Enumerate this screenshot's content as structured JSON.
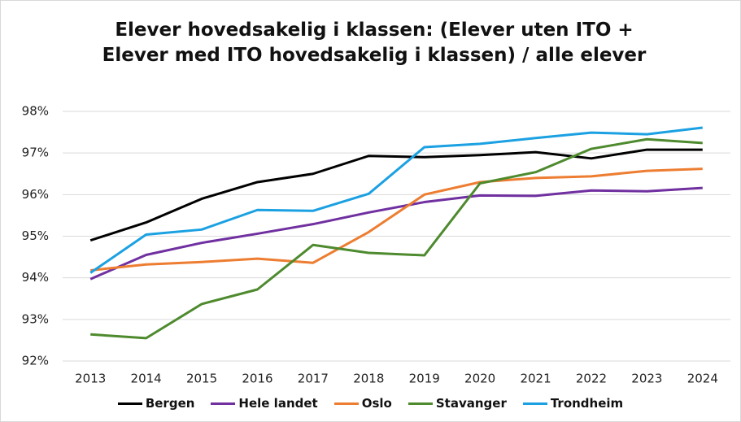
{
  "chart_data": {
    "type": "line",
    "title": "Elever hovedsakelig i klassen: (Elever uten ITO + Elever med ITO hovedsakelig i klassen) / alle elever",
    "categories": [
      "2013",
      "2014",
      "2015",
      "2016",
      "2017",
      "2018",
      "2019",
      "2020",
      "2021",
      "2022",
      "2023",
      "2024"
    ],
    "series": [
      {
        "name": "Bergen",
        "color": "#000000",
        "values": [
          94.9,
          95.33,
          95.9,
          96.3,
          96.5,
          96.93,
          96.9,
          96.95,
          97.02,
          96.87,
          97.08,
          97.08
        ]
      },
      {
        "name": "Hele landet",
        "color": "#7030a0",
        "values": [
          93.97,
          94.55,
          94.84,
          95.06,
          95.29,
          95.57,
          95.82,
          95.98,
          95.97,
          96.1,
          96.08,
          96.16
        ]
      },
      {
        "name": "Oslo",
        "color": "#ed7d31",
        "values": [
          94.18,
          94.32,
          94.38,
          94.46,
          94.36,
          95.1,
          96.0,
          96.3,
          96.4,
          96.44,
          96.57,
          96.62
        ]
      },
      {
        "name": "Stavanger",
        "color": "#4e8a2e",
        "values": [
          92.64,
          92.55,
          93.37,
          93.72,
          94.79,
          94.6,
          94.54,
          96.27,
          96.54,
          97.1,
          97.33,
          97.24
        ]
      },
      {
        "name": "Trondheim",
        "color": "#1ba1e2",
        "values": [
          94.12,
          95.04,
          95.16,
          95.63,
          95.61,
          96.02,
          97.14,
          97.22,
          97.36,
          97.49,
          97.45,
          97.61
        ]
      }
    ],
    "ylim": [
      92,
      98
    ],
    "yticks": [
      {
        "value": 92,
        "label": "92%"
      },
      {
        "value": 93,
        "label": "93%"
      },
      {
        "value": 94,
        "label": "94%"
      },
      {
        "value": 95,
        "label": "95%"
      },
      {
        "value": 96,
        "label": "96%"
      },
      {
        "value": 97,
        "label": "97%"
      },
      {
        "value": 98,
        "label": "98%"
      }
    ],
    "grid": true,
    "legend": "bottom"
  }
}
